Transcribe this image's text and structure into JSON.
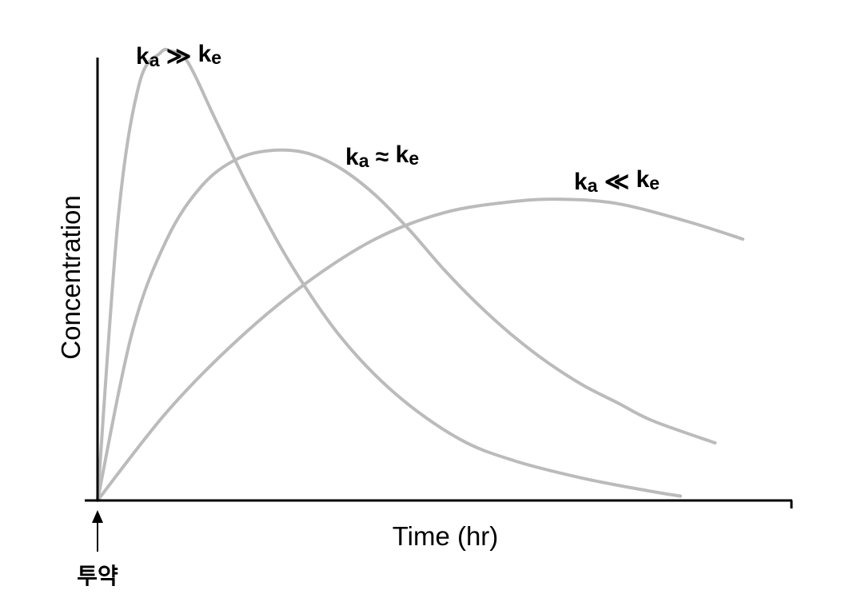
{
  "chart_data": {
    "type": "line",
    "title": "",
    "xlabel": "Time (hr)",
    "ylabel": "Concentration",
    "xlim": [
      0,
      10
    ],
    "ylim": [
      0,
      10
    ],
    "grid": false,
    "legend": "none",
    "series": [
      {
        "label": {
          "k": "k",
          "sub1": "a",
          "op": "≫",
          "k2": "k",
          "sub2": "e"
        },
        "color": "#bbbbbb",
        "x": [
          0,
          0.3,
          0.6,
          0.9,
          1.05,
          1.3,
          1.7,
          2.2,
          2.8,
          3.5,
          4.3,
          5.2,
          6.0,
          7.0,
          8.0,
          8.4
        ],
        "y": [
          0,
          6.4,
          9.4,
          10.1,
          10.15,
          9.9,
          8.6,
          7.0,
          5.3,
          3.7,
          2.4,
          1.4,
          0.9,
          0.5,
          0.2,
          0.1
        ]
      },
      {
        "label": {
          "k": "k",
          "sub1": "a",
          "op": "≈",
          "k2": "k",
          "sub2": "e"
        },
        "color": "#bbbbbb",
        "x": [
          0,
          0.5,
          1.0,
          1.5,
          2.0,
          2.5,
          3.0,
          3.5,
          4.0,
          4.5,
          5.0,
          5.5,
          6.0,
          6.5,
          7.0,
          7.5,
          8.0,
          8.9
        ],
        "y": [
          0,
          3.8,
          5.9,
          7.1,
          7.7,
          7.9,
          7.85,
          7.5,
          6.9,
          6.1,
          5.2,
          4.4,
          3.7,
          3.1,
          2.6,
          2.2,
          1.8,
          1.3
        ]
      },
      {
        "label": {
          "k": "k",
          "sub1": "a",
          "op": "≪",
          "k2": "k",
          "sub2": "e"
        },
        "color": "#bbbbbb",
        "x": [
          0,
          1.0,
          2.0,
          3.0,
          4.0,
          5.0,
          6.0,
          6.7,
          7.5,
          8.5,
          9.3
        ],
        "y": [
          0,
          2.0,
          3.6,
          4.9,
          5.9,
          6.5,
          6.75,
          6.8,
          6.7,
          6.3,
          5.9
        ]
      }
    ]
  },
  "annotations": {
    "dose_label": "투약"
  }
}
